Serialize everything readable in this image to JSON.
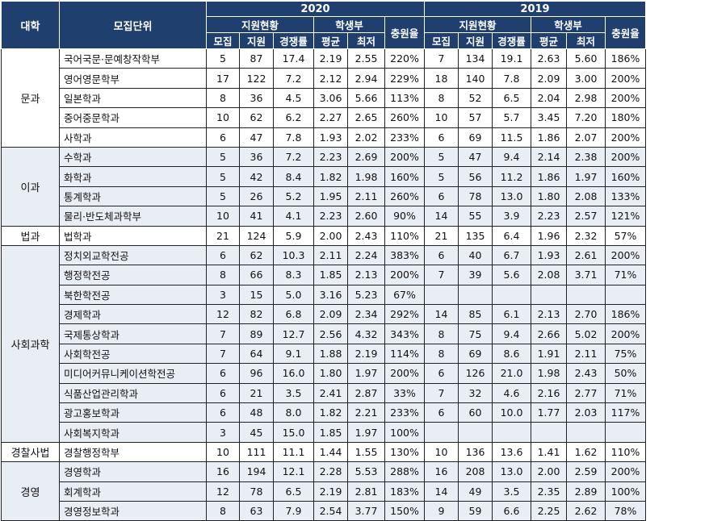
{
  "header": {
    "college": "대학",
    "unit": "모집단위",
    "year_a": "2020",
    "year_b": "2019",
    "group_apply": "지원현황",
    "group_grade": "학생부",
    "fill_rate": "충원율",
    "recruit": "모집",
    "apply": "지원",
    "competition": "경쟁률",
    "avg": "평균",
    "min": "최저"
  },
  "groups": [
    {
      "college": "문과",
      "shade": false,
      "rows": [
        {
          "major": "국어국문·문예창작학부",
          "y2020": [
            "5",
            "87",
            "17.4",
            "2.19",
            "2.55",
            "220%"
          ],
          "y2019": [
            "7",
            "134",
            "19.1",
            "2.63",
            "5.60",
            "186%"
          ]
        },
        {
          "major": "영어영문학부",
          "y2020": [
            "17",
            "122",
            "7.2",
            "2.12",
            "2.94",
            "229%"
          ],
          "y2019": [
            "18",
            "140",
            "7.8",
            "2.09",
            "3.00",
            "200%"
          ]
        },
        {
          "major": "일본학과",
          "y2020": [
            "8",
            "36",
            "4.5",
            "3.06",
            "5.66",
            "113%"
          ],
          "y2019": [
            "8",
            "52",
            "6.5",
            "2.04",
            "2.98",
            "200%"
          ]
        },
        {
          "major": "중어중문학과",
          "y2020": [
            "10",
            "62",
            "6.2",
            "2.27",
            "2.65",
            "260%"
          ],
          "y2019": [
            "10",
            "57",
            "5.7",
            "3.45",
            "7.20",
            "180%"
          ]
        },
        {
          "major": "사학과",
          "y2020": [
            "6",
            "47",
            "7.8",
            "1.93",
            "2.02",
            "233%"
          ],
          "y2019": [
            "6",
            "69",
            "11.5",
            "1.86",
            "2.07",
            "200%"
          ]
        }
      ]
    },
    {
      "college": "이과",
      "shade": true,
      "rows": [
        {
          "major": "수학과",
          "y2020": [
            "5",
            "36",
            "7.2",
            "2.23",
            "2.69",
            "200%"
          ],
          "y2019": [
            "5",
            "47",
            "9.4",
            "2.14",
            "2.38",
            "200%"
          ]
        },
        {
          "major": "화학과",
          "y2020": [
            "5",
            "42",
            "8.4",
            "1.82",
            "1.98",
            "160%"
          ],
          "y2019": [
            "5",
            "56",
            "11.2",
            "1.86",
            "1.97",
            "160%"
          ]
        },
        {
          "major": "통계학과",
          "y2020": [
            "5",
            "26",
            "5.2",
            "1.95",
            "2.11",
            "260%"
          ],
          "y2019": [
            "6",
            "78",
            "13.0",
            "1.80",
            "2.08",
            "133%"
          ]
        },
        {
          "major": "물리·반도체과학부",
          "y2020": [
            "10",
            "41",
            "4.1",
            "2.23",
            "2.60",
            "90%"
          ],
          "y2019": [
            "14",
            "55",
            "3.9",
            "2.23",
            "2.57",
            "121%"
          ]
        }
      ]
    },
    {
      "college": "법과",
      "shade": false,
      "rows": [
        {
          "major": "법학과",
          "y2020": [
            "21",
            "124",
            "5.9",
            "2.00",
            "2.43",
            "110%"
          ],
          "y2019": [
            "21",
            "135",
            "6.4",
            "1.96",
            "2.32",
            "57%"
          ]
        }
      ]
    },
    {
      "college": "사회과학",
      "shade": true,
      "rows": [
        {
          "major": "정치외교학전공",
          "y2020": [
            "6",
            "62",
            "10.3",
            "2.11",
            "2.24",
            "383%"
          ],
          "y2019": [
            "6",
            "40",
            "6.7",
            "1.93",
            "2.61",
            "200%"
          ]
        },
        {
          "major": "행정학전공",
          "y2020": [
            "8",
            "66",
            "8.3",
            "1.85",
            "2.13",
            "200%"
          ],
          "y2019": [
            "7",
            "39",
            "5.6",
            "2.08",
            "3.71",
            "71%"
          ]
        },
        {
          "major": "북한학전공",
          "y2020": [
            "3",
            "15",
            "5.0",
            "3.16",
            "5.23",
            "67%"
          ],
          "y2019": [
            "",
            "",
            "",
            "",
            "",
            ""
          ]
        },
        {
          "major": "경제학과",
          "y2020": [
            "12",
            "82",
            "6.8",
            "2.09",
            "2.34",
            "292%"
          ],
          "y2019": [
            "14",
            "85",
            "6.1",
            "2.13",
            "2.70",
            "186%"
          ]
        },
        {
          "major": "국제통상학과",
          "y2020": [
            "7",
            "89",
            "12.7",
            "2.56",
            "4.32",
            "343%"
          ],
          "y2019": [
            "8",
            "75",
            "9.4",
            "2.66",
            "5.02",
            "200%"
          ]
        },
        {
          "major": "사회학전공",
          "y2020": [
            "7",
            "64",
            "9.1",
            "1.88",
            "2.19",
            "114%"
          ],
          "y2019": [
            "8",
            "69",
            "8.6",
            "1.91",
            "2.11",
            "75%"
          ]
        },
        {
          "major": "미디어커뮤니케이션학전공",
          "y2020": [
            "6",
            "96",
            "16.0",
            "1.80",
            "1.97",
            "200%"
          ],
          "y2019": [
            "6",
            "126",
            "21.0",
            "1.98",
            "2.43",
            "50%"
          ]
        },
        {
          "major": "식품산업관리학과",
          "y2020": [
            "6",
            "21",
            "3.5",
            "2.41",
            "2.87",
            "33%"
          ],
          "y2019": [
            "7",
            "32",
            "4.6",
            "2.16",
            "2.77",
            "71%"
          ]
        },
        {
          "major": "광고홍보학과",
          "y2020": [
            "6",
            "48",
            "8.0",
            "1.82",
            "2.21",
            "233%"
          ],
          "y2019": [
            "6",
            "60",
            "10.0",
            "1.77",
            "2.03",
            "117%"
          ]
        },
        {
          "major": "사회복지학과",
          "y2020": [
            "3",
            "45",
            "15.0",
            "1.85",
            "1.97",
            "100%"
          ],
          "y2019": [
            "",
            "",
            "",
            "",
            "",
            ""
          ]
        }
      ]
    },
    {
      "college": "경찰사법",
      "shade": false,
      "rows": [
        {
          "major": "경찰행정학부",
          "y2020": [
            "10",
            "111",
            "11.1",
            "1.44",
            "1.55",
            "130%"
          ],
          "y2019": [
            "10",
            "136",
            "13.6",
            "1.41",
            "1.62",
            "110%"
          ]
        }
      ]
    },
    {
      "college": "경영",
      "shade": true,
      "rows": [
        {
          "major": "경영학과",
          "y2020": [
            "16",
            "194",
            "12.1",
            "2.28",
            "5.53",
            "288%"
          ],
          "y2019": [
            "16",
            "208",
            "13.0",
            "2.00",
            "2.59",
            "200%"
          ]
        },
        {
          "major": "회계학과",
          "y2020": [
            "12",
            "78",
            "6.5",
            "2.19",
            "2.81",
            "183%"
          ],
          "y2019": [
            "14",
            "49",
            "3.5",
            "2.35",
            "2.89",
            "100%"
          ]
        },
        {
          "major": "경영정보학과",
          "y2020": [
            "8",
            "63",
            "7.9",
            "2.54",
            "3.77",
            "150%"
          ],
          "y2019": [
            "9",
            "59",
            "6.6",
            "2.25",
            "2.62",
            "78%"
          ]
        }
      ]
    }
  ]
}
